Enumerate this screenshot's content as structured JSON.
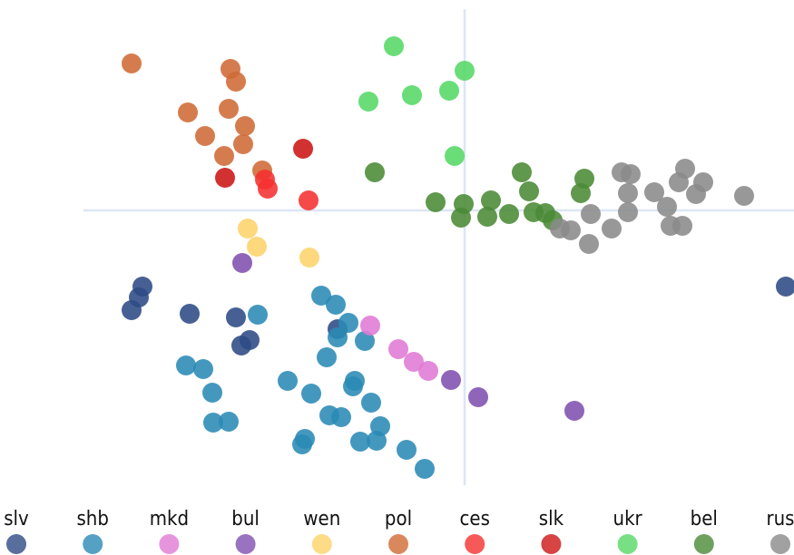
{
  "chart_data": {
    "type": "scatter",
    "xlim": [
      -4.2,
      3.63
    ],
    "ylim": [
      -3.03,
      2.22
    ],
    "legend": "bottom",
    "series": [
      {
        "name": "slv",
        "color": "#2e4a85",
        "x": [
          -3.55,
          -3.59,
          -3.67,
          -3.03,
          -2.52,
          -2.46,
          -2.37,
          -1.4,
          3.54
        ],
        "values": [
          -0.84,
          -0.96,
          -1.1,
          -1.14,
          -1.18,
          -1.49,
          -1.43,
          -1.31,
          -0.84
        ]
      },
      {
        "name": "shb",
        "color": "#2a8ab5",
        "x": [
          -1.58,
          -1.42,
          -1.28,
          -1.4,
          -1.1,
          -2.28,
          -1.52,
          -3.07,
          -2.88,
          -2.78,
          -2.77,
          -2.6,
          -1.95,
          -1.69,
          -1.23,
          -1.21,
          -1.03,
          -1.49,
          -1.36,
          -0.93,
          -1.76,
          -1.79,
          -1.15,
          -0.97,
          -0.64,
          -0.44
        ],
        "values": [
          -0.94,
          -1.04,
          -1.24,
          -1.4,
          -1.44,
          -1.15,
          -1.62,
          -1.71,
          -1.75,
          -2.01,
          -2.34,
          -2.33,
          -1.88,
          -2.02,
          -1.94,
          -1.88,
          -2.12,
          -2.26,
          -2.28,
          -2.38,
          -2.52,
          -2.58,
          -2.55,
          -2.54,
          -2.64,
          -2.85
        ]
      },
      {
        "name": "mkd",
        "color": "#e07ad5",
        "x": [
          -1.04,
          -0.73,
          -0.56,
          -0.4
        ],
        "values": [
          -1.27,
          -1.53,
          -1.67,
          -1.77
        ]
      },
      {
        "name": "bul",
        "color": "#8050b0",
        "x": [
          -0.15,
          0.15,
          1.21,
          -2.45
        ],
        "values": [
          -1.87,
          -2.06,
          -2.21,
          -0.58
        ]
      },
      {
        "name": "wen",
        "color": "#fdd36a",
        "x": [
          -2.39,
          -2.29,
          -1.71
        ],
        "values": [
          -0.2,
          -0.4,
          -0.52
        ]
      },
      {
        "name": "pol",
        "color": "#cf6a35",
        "x": [
          -3.67,
          -2.58,
          -2.52,
          -3.05,
          -2.6,
          -2.42,
          -2.86,
          -2.44,
          -2.65,
          -2.23
        ],
        "values": [
          1.62,
          1.56,
          1.42,
          1.08,
          1.12,
          0.93,
          0.82,
          0.73,
          0.6,
          0.44
        ]
      },
      {
        "name": "ces",
        "color": "#f53030",
        "x": [
          -2.17,
          -2.2,
          -1.72
        ],
        "values": [
          0.24,
          0.34,
          0.11
        ]
      },
      {
        "name": "slk",
        "color": "#cc1515",
        "x": [
          -1.78,
          -2.64
        ],
        "values": [
          0.68,
          0.36
        ]
      },
      {
        "name": "ukr",
        "color": "#55d865",
        "x": [
          -0.78,
          0,
          -0.17,
          -0.58,
          -1.06,
          -0.11
        ],
        "values": [
          1.81,
          1.54,
          1.32,
          1.27,
          1.2,
          0.6
        ]
      },
      {
        "name": "bel",
        "color": "#4a8a35",
        "x": [
          -0.99,
          0.63,
          1.32,
          0.71,
          1.28,
          -0.32,
          -0.01,
          0.29,
          -0.04,
          0.25,
          0.49,
          0.76,
          0.89,
          0.97
        ],
        "values": [
          0.42,
          0.42,
          0.35,
          0.21,
          0.19,
          0.09,
          0.07,
          0.11,
          -0.08,
          -0.07,
          -0.04,
          -0.02,
          -0.03,
          -0.11
        ]
      },
      {
        "name": "rus",
        "color": "#8a8a8a",
        "x": [
          1.73,
          1.83,
          2.43,
          2.63,
          2.36,
          2.55,
          3.08,
          1.8,
          2.09,
          2.23,
          1.8,
          1.39,
          1.05,
          1.17,
          1.62,
          1.37,
          2.27,
          2.4
        ],
        "values": [
          0.42,
          0.4,
          0.46,
          0.31,
          0.31,
          0.18,
          0.16,
          0.19,
          0.2,
          0.04,
          -0.02,
          -0.04,
          -0.2,
          -0.22,
          -0.2,
          -0.37,
          -0.17,
          -0.17
        ]
      }
    ]
  }
}
